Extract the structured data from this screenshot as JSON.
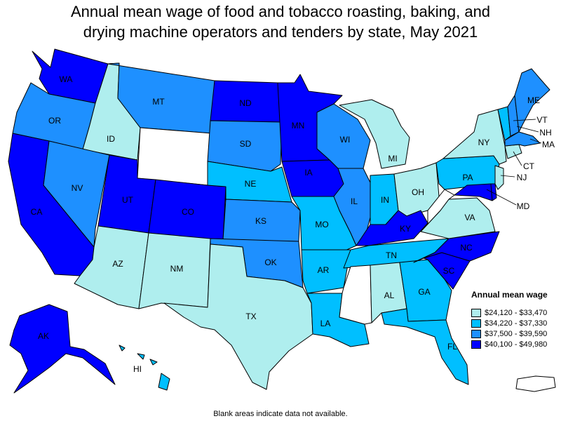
{
  "title_line1": "Annual mean wage of food and tobacco roasting, baking, and",
  "title_line2": "drying machine operators and tenders by state, May 2021",
  "colors": {
    "q1": "#afeeee",
    "q2": "#00bfff",
    "q3": "#1e90ff",
    "q4": "#0000ff",
    "na": "#ffffff"
  },
  "legend": {
    "title": "Annual mean wage",
    "items": [
      {
        "key": "q1",
        "label": "$24,120 - $33,470"
      },
      {
        "key": "q2",
        "label": "$34,220 - $37,330"
      },
      {
        "key": "q3",
        "label": "$37,500 - $39,590"
      },
      {
        "key": "q4",
        "label": "$40,100 - $49,980"
      }
    ]
  },
  "states": [
    {
      "abbr": "WA",
      "bin": "q4"
    },
    {
      "abbr": "OR",
      "bin": "q3"
    },
    {
      "abbr": "CA",
      "bin": "q4"
    },
    {
      "abbr": "ID",
      "bin": "q1"
    },
    {
      "abbr": "NV",
      "bin": "q3"
    },
    {
      "abbr": "MT",
      "bin": "q3"
    },
    {
      "abbr": "WY",
      "bin": "na"
    },
    {
      "abbr": "UT",
      "bin": "q4"
    },
    {
      "abbr": "AZ",
      "bin": "q1"
    },
    {
      "abbr": "CO",
      "bin": "q4"
    },
    {
      "abbr": "NM",
      "bin": "q1"
    },
    {
      "abbr": "ND",
      "bin": "q4"
    },
    {
      "abbr": "SD",
      "bin": "q3"
    },
    {
      "abbr": "NE",
      "bin": "q2"
    },
    {
      "abbr": "KS",
      "bin": "q3"
    },
    {
      "abbr": "OK",
      "bin": "q3"
    },
    {
      "abbr": "TX",
      "bin": "q1"
    },
    {
      "abbr": "MN",
      "bin": "q4"
    },
    {
      "abbr": "IA",
      "bin": "q4"
    },
    {
      "abbr": "MO",
      "bin": "q2"
    },
    {
      "abbr": "AR",
      "bin": "q2"
    },
    {
      "abbr": "LA",
      "bin": "q2"
    },
    {
      "abbr": "WI",
      "bin": "q3"
    },
    {
      "abbr": "IL",
      "bin": "q3"
    },
    {
      "abbr": "MI",
      "bin": "q1"
    },
    {
      "abbr": "IN",
      "bin": "q2"
    },
    {
      "abbr": "OH",
      "bin": "q1"
    },
    {
      "abbr": "KY",
      "bin": "q4"
    },
    {
      "abbr": "TN",
      "bin": "q2"
    },
    {
      "abbr": "MS",
      "bin": "na"
    },
    {
      "abbr": "AL",
      "bin": "q1"
    },
    {
      "abbr": "GA",
      "bin": "q2"
    },
    {
      "abbr": "FL",
      "bin": "q2"
    },
    {
      "abbr": "SC",
      "bin": "q4"
    },
    {
      "abbr": "NC",
      "bin": "q4"
    },
    {
      "abbr": "VA",
      "bin": "q1"
    },
    {
      "abbr": "WV",
      "bin": "na"
    },
    {
      "abbr": "PA",
      "bin": "q2"
    },
    {
      "abbr": "NY",
      "bin": "q1"
    },
    {
      "abbr": "ME",
      "bin": "q3"
    },
    {
      "abbr": "VT",
      "bin": "q2"
    },
    {
      "abbr": "NH",
      "bin": "q3"
    },
    {
      "abbr": "MA",
      "bin": "q3"
    },
    {
      "abbr": "CT",
      "bin": "q1"
    },
    {
      "abbr": "NJ",
      "bin": "q1"
    },
    {
      "abbr": "MD",
      "bin": "q4"
    },
    {
      "abbr": "DE",
      "bin": "q4"
    },
    {
      "abbr": "AK",
      "bin": "q4"
    },
    {
      "abbr": "HI",
      "bin": "q2"
    },
    {
      "abbr": "PR",
      "bin": "na"
    }
  ],
  "footnote": "Blank areas indicate data not available."
}
